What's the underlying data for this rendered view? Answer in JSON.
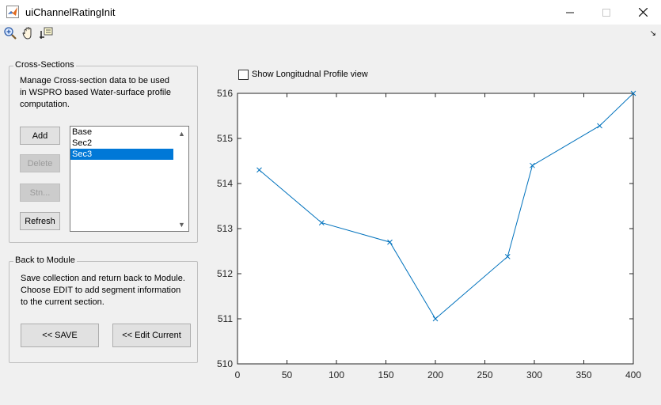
{
  "window": {
    "title": "uiChannelRatingInit",
    "minimize_icon": "minimize-icon",
    "maximize_icon": "maximize-icon",
    "close_icon": "close-icon"
  },
  "toolbar": {
    "icons": [
      "zoom-in-icon",
      "pan-hand-icon",
      "data-cursor-icon"
    ]
  },
  "cross_sections": {
    "title": "Cross-Sections",
    "description_lines": [
      "Manage Cross-section data to be used",
      "in WSPRO based Water-surface profile",
      "computation."
    ],
    "buttons": {
      "add": "Add",
      "delete": "Delete",
      "stn": "Stn...",
      "refresh": "Refresh"
    },
    "list_items": [
      "Base",
      "Sec2",
      "Sec3"
    ],
    "selected_index": 2
  },
  "back_to_module": {
    "title": "Back to Module",
    "description_lines": [
      "Save collection and return back to Module.",
      "Choose EDIT to add segment  information",
      "to the current section."
    ],
    "save_label": "<< SAVE",
    "edit_label": "<< Edit Current"
  },
  "longitudinal": {
    "checkbox_label": "Show Longitudnal Profile view",
    "checked": false
  },
  "chart_data": {
    "type": "line",
    "title": "",
    "xlabel": "",
    "ylabel": "",
    "xlim": [
      0,
      400
    ],
    "ylim": [
      510,
      516
    ],
    "x_ticks": [
      0,
      50,
      100,
      150,
      200,
      250,
      300,
      350,
      400
    ],
    "y_ticks": [
      510,
      511,
      512,
      513,
      514,
      515,
      516
    ],
    "grid": false,
    "color": "#0072bd",
    "marker": "x",
    "series": [
      {
        "x": [
          22,
          85,
          154,
          200,
          273,
          298,
          366,
          400
        ],
        "y": [
          514.3,
          513.13,
          512.7,
          511.0,
          512.38,
          514.4,
          515.28,
          516.0
        ]
      }
    ]
  }
}
